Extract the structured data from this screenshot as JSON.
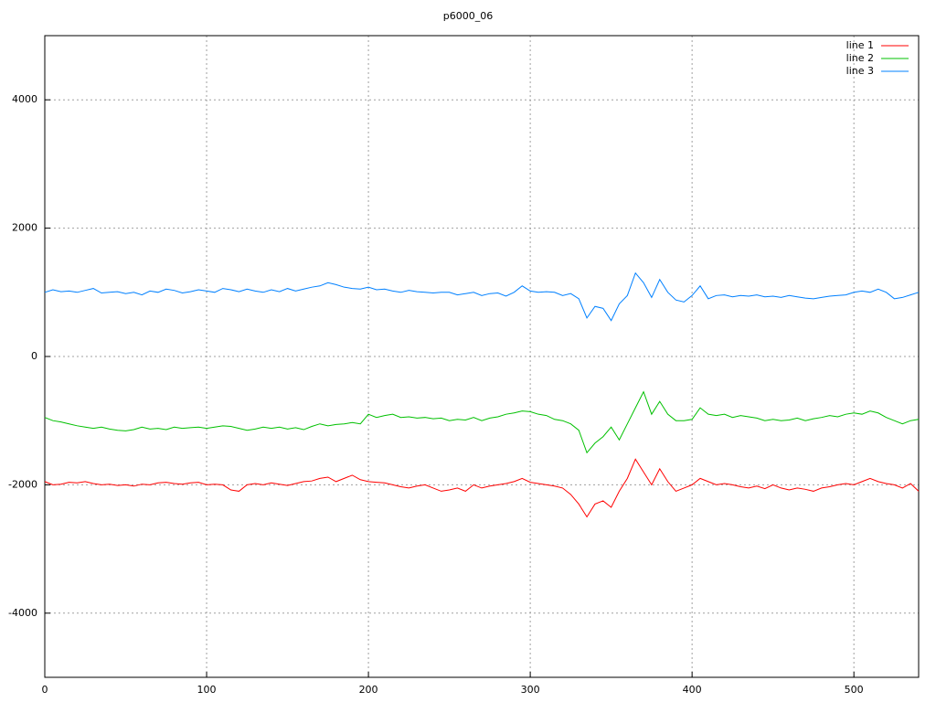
{
  "chart_data": {
    "type": "line",
    "title": "p6000_06",
    "x": [
      0,
      5,
      10,
      15,
      20,
      25,
      30,
      35,
      40,
      45,
      50,
      55,
      60,
      65,
      70,
      75,
      80,
      85,
      90,
      95,
      100,
      105,
      110,
      115,
      120,
      125,
      130,
      135,
      140,
      145,
      150,
      155,
      160,
      165,
      170,
      175,
      180,
      185,
      190,
      195,
      200,
      205,
      210,
      215,
      220,
      225,
      230,
      235,
      240,
      245,
      250,
      255,
      260,
      265,
      270,
      275,
      280,
      285,
      290,
      295,
      300,
      305,
      310,
      315,
      320,
      325,
      330,
      335,
      340,
      345,
      350,
      355,
      360,
      365,
      370,
      375,
      380,
      385,
      390,
      395,
      400,
      405,
      410,
      415,
      420,
      425,
      430,
      435,
      440,
      445,
      450,
      455,
      460,
      465,
      470,
      475,
      480,
      485,
      490,
      495,
      500,
      505,
      510,
      515,
      520,
      525,
      530,
      535,
      540
    ],
    "series": [
      {
        "name": "line 1",
        "color": "#ff0000",
        "values": [
          -1950,
          -2000,
          -1990,
          -1960,
          -1970,
          -1950,
          -1980,
          -2000,
          -1990,
          -2010,
          -2000,
          -2020,
          -1990,
          -2000,
          -1970,
          -1960,
          -1980,
          -1990,
          -1970,
          -1960,
          -2000,
          -1990,
          -2000,
          -2080,
          -2100,
          -2000,
          -1980,
          -2000,
          -1970,
          -1990,
          -2010,
          -1980,
          -1950,
          -1940,
          -1900,
          -1880,
          -1950,
          -1900,
          -1850,
          -1920,
          -1950,
          -1960,
          -1970,
          -2000,
          -2030,
          -2050,
          -2020,
          -2000,
          -2050,
          -2100,
          -2080,
          -2050,
          -2100,
          -2000,
          -2050,
          -2020,
          -2000,
          -1980,
          -1950,
          -1900,
          -1960,
          -1980,
          -2000,
          -2020,
          -2050,
          -2150,
          -2300,
          -2500,
          -2300,
          -2250,
          -2350,
          -2100,
          -1900,
          -1600,
          -1800,
          -2000,
          -1750,
          -1950,
          -2100,
          -2050,
          -2000,
          -1900,
          -1950,
          -2000,
          -1980,
          -2000,
          -2030,
          -2050,
          -2020,
          -2060,
          -2000,
          -2050,
          -2080,
          -2050,
          -2070,
          -2100,
          -2050,
          -2030,
          -2000,
          -1980,
          -2000,
          -1950,
          -1900,
          -1950,
          -1980,
          -2000,
          -2050,
          -1980,
          -2100
        ]
      },
      {
        "name": "line 2",
        "color": "#00c000",
        "values": [
          -950,
          -1000,
          -1020,
          -1050,
          -1080,
          -1100,
          -1120,
          -1100,
          -1130,
          -1150,
          -1160,
          -1140,
          -1100,
          -1130,
          -1120,
          -1140,
          -1100,
          -1120,
          -1110,
          -1100,
          -1120,
          -1100,
          -1080,
          -1090,
          -1120,
          -1150,
          -1130,
          -1100,
          -1120,
          -1100,
          -1130,
          -1110,
          -1140,
          -1090,
          -1050,
          -1080,
          -1060,
          -1050,
          -1030,
          -1050,
          -900,
          -950,
          -920,
          -900,
          -950,
          -940,
          -960,
          -950,
          -970,
          -960,
          -1000,
          -980,
          -990,
          -950,
          -1000,
          -960,
          -940,
          -900,
          -880,
          -850,
          -860,
          -900,
          -920,
          -980,
          -1000,
          -1050,
          -1150,
          -1500,
          -1350,
          -1250,
          -1100,
          -1300,
          -1050,
          -800,
          -550,
          -900,
          -700,
          -900,
          -1000,
          -1000,
          -980,
          -800,
          -900,
          -920,
          -900,
          -950,
          -920,
          -940,
          -960,
          -1000,
          -980,
          -1000,
          -990,
          -960,
          -1000,
          -970,
          -950,
          -920,
          -940,
          -900,
          -880,
          -900,
          -850,
          -880,
          -950,
          -1000,
          -1050,
          -1000,
          -980
        ]
      },
      {
        "name": "line 3",
        "color": "#0080ff",
        "values": [
          1000,
          1040,
          1010,
          1020,
          1000,
          1030,
          1060,
          990,
          1000,
          1010,
          980,
          1000,
          960,
          1020,
          1000,
          1050,
          1030,
          990,
          1010,
          1040,
          1020,
          1000,
          1060,
          1040,
          1010,
          1050,
          1020,
          1000,
          1040,
          1010,
          1060,
          1020,
          1050,
          1080,
          1100,
          1150,
          1120,
          1080,
          1060,
          1050,
          1080,
          1040,
          1050,
          1020,
          1000,
          1030,
          1010,
          1000,
          990,
          1000,
          1000,
          960,
          980,
          1000,
          950,
          980,
          990,
          940,
          1000,
          1100,
          1020,
          1000,
          1010,
          1000,
          950,
          980,
          900,
          600,
          780,
          750,
          560,
          820,
          950,
          1300,
          1150,
          920,
          1200,
          1000,
          880,
          850,
          950,
          1100,
          900,
          950,
          960,
          930,
          950,
          940,
          960,
          930,
          940,
          920,
          950,
          930,
          910,
          900,
          920,
          940,
          950,
          960,
          1000,
          1020,
          1000,
          1050,
          1000,
          900,
          920,
          960,
          1000
        ]
      }
    ],
    "xlim": [
      0,
      540
    ],
    "ylim": [
      -5000,
      5000
    ],
    "xticks": [
      0,
      100,
      200,
      300,
      400,
      500
    ],
    "yticks": [
      -4000,
      -2000,
      0,
      2000,
      4000
    ],
    "grid": true,
    "legend": "top-right"
  }
}
